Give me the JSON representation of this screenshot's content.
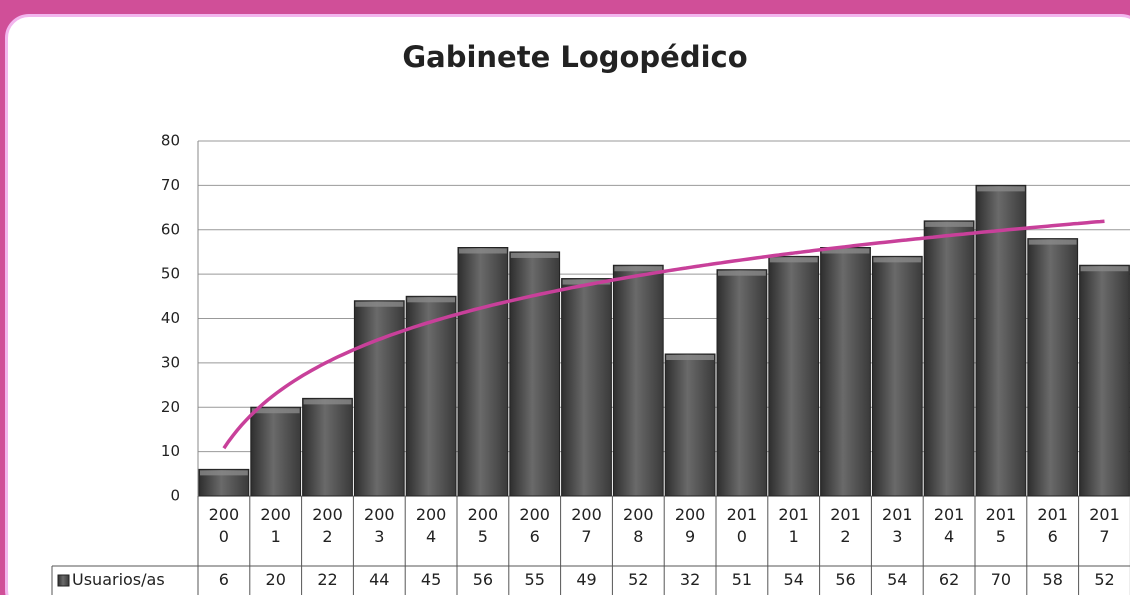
{
  "chart_data": {
    "type": "bar",
    "title": "Gabinete Logopédico",
    "categories": [
      "2000",
      "2001",
      "2002",
      "2003",
      "2004",
      "2005",
      "2006",
      "2007",
      "2008",
      "2009",
      "2010",
      "2011",
      "2012",
      "2013",
      "2014",
      "2015",
      "2016",
      "2017"
    ],
    "series": [
      {
        "name": "Usuarios/as",
        "color": "#4a4a4a",
        "values": [
          6,
          20,
          22,
          44,
          45,
          56,
          55,
          49,
          52,
          32,
          51,
          54,
          56,
          54,
          62,
          70,
          58,
          52
        ]
      }
    ],
    "ylim": [
      0,
      80
    ],
    "yticks": [
      0,
      10,
      20,
      30,
      40,
      50,
      60,
      70,
      80
    ],
    "grid": true,
    "data_table": true,
    "trendline": {
      "type": "logarithmic",
      "color": "#c8409a"
    }
  }
}
